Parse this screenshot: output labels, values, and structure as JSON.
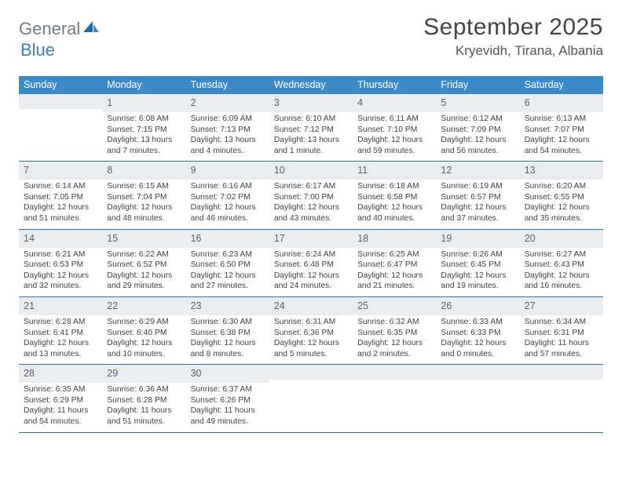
{
  "brand": {
    "part1": "General",
    "part2": "Blue"
  },
  "title": "September 2025",
  "location": "Kryevidh, Tirana, Albania",
  "colors": {
    "header_bg": "#3a8ac8",
    "daynum_bg": "#e9edf0",
    "divider": "#2e6fa6",
    "brand_gray": "#6f7a84",
    "brand_blue": "#3a7fbf"
  },
  "weekdays": [
    "Sunday",
    "Monday",
    "Tuesday",
    "Wednesday",
    "Thursday",
    "Friday",
    "Saturday"
  ],
  "weeks": [
    [
      {
        "n": "",
        "sunrise": "",
        "sunset": "",
        "day1": "",
        "day2": ""
      },
      {
        "n": "1",
        "sunrise": "Sunrise: 6:08 AM",
        "sunset": "Sunset: 7:15 PM",
        "day1": "Daylight: 13 hours",
        "day2": "and 7 minutes."
      },
      {
        "n": "2",
        "sunrise": "Sunrise: 6:09 AM",
        "sunset": "Sunset: 7:13 PM",
        "day1": "Daylight: 13 hours",
        "day2": "and 4 minutes."
      },
      {
        "n": "3",
        "sunrise": "Sunrise: 6:10 AM",
        "sunset": "Sunset: 7:12 PM",
        "day1": "Daylight: 13 hours",
        "day2": "and 1 minute."
      },
      {
        "n": "4",
        "sunrise": "Sunrise: 6:11 AM",
        "sunset": "Sunset: 7:10 PM",
        "day1": "Daylight: 12 hours",
        "day2": "and 59 minutes."
      },
      {
        "n": "5",
        "sunrise": "Sunrise: 6:12 AM",
        "sunset": "Sunset: 7:09 PM",
        "day1": "Daylight: 12 hours",
        "day2": "and 56 minutes."
      },
      {
        "n": "6",
        "sunrise": "Sunrise: 6:13 AM",
        "sunset": "Sunset: 7:07 PM",
        "day1": "Daylight: 12 hours",
        "day2": "and 54 minutes."
      }
    ],
    [
      {
        "n": "7",
        "sunrise": "Sunrise: 6:14 AM",
        "sunset": "Sunset: 7:05 PM",
        "day1": "Daylight: 12 hours",
        "day2": "and 51 minutes."
      },
      {
        "n": "8",
        "sunrise": "Sunrise: 6:15 AM",
        "sunset": "Sunset: 7:04 PM",
        "day1": "Daylight: 12 hours",
        "day2": "and 48 minutes."
      },
      {
        "n": "9",
        "sunrise": "Sunrise: 6:16 AM",
        "sunset": "Sunset: 7:02 PM",
        "day1": "Daylight: 12 hours",
        "day2": "and 46 minutes."
      },
      {
        "n": "10",
        "sunrise": "Sunrise: 6:17 AM",
        "sunset": "Sunset: 7:00 PM",
        "day1": "Daylight: 12 hours",
        "day2": "and 43 minutes."
      },
      {
        "n": "11",
        "sunrise": "Sunrise: 6:18 AM",
        "sunset": "Sunset: 6:58 PM",
        "day1": "Daylight: 12 hours",
        "day2": "and 40 minutes."
      },
      {
        "n": "12",
        "sunrise": "Sunrise: 6:19 AM",
        "sunset": "Sunset: 6:57 PM",
        "day1": "Daylight: 12 hours",
        "day2": "and 37 minutes."
      },
      {
        "n": "13",
        "sunrise": "Sunrise: 6:20 AM",
        "sunset": "Sunset: 6:55 PM",
        "day1": "Daylight: 12 hours",
        "day2": "and 35 minutes."
      }
    ],
    [
      {
        "n": "14",
        "sunrise": "Sunrise: 6:21 AM",
        "sunset": "Sunset: 6:53 PM",
        "day1": "Daylight: 12 hours",
        "day2": "and 32 minutes."
      },
      {
        "n": "15",
        "sunrise": "Sunrise: 6:22 AM",
        "sunset": "Sunset: 6:52 PM",
        "day1": "Daylight: 12 hours",
        "day2": "and 29 minutes."
      },
      {
        "n": "16",
        "sunrise": "Sunrise: 6:23 AM",
        "sunset": "Sunset: 6:50 PM",
        "day1": "Daylight: 12 hours",
        "day2": "and 27 minutes."
      },
      {
        "n": "17",
        "sunrise": "Sunrise: 6:24 AM",
        "sunset": "Sunset: 6:48 PM",
        "day1": "Daylight: 12 hours",
        "day2": "and 24 minutes."
      },
      {
        "n": "18",
        "sunrise": "Sunrise: 6:25 AM",
        "sunset": "Sunset: 6:47 PM",
        "day1": "Daylight: 12 hours",
        "day2": "and 21 minutes."
      },
      {
        "n": "19",
        "sunrise": "Sunrise: 6:26 AM",
        "sunset": "Sunset: 6:45 PM",
        "day1": "Daylight: 12 hours",
        "day2": "and 19 minutes."
      },
      {
        "n": "20",
        "sunrise": "Sunrise: 6:27 AM",
        "sunset": "Sunset: 6:43 PM",
        "day1": "Daylight: 12 hours",
        "day2": "and 16 minutes."
      }
    ],
    [
      {
        "n": "21",
        "sunrise": "Sunrise: 6:28 AM",
        "sunset": "Sunset: 6:41 PM",
        "day1": "Daylight: 12 hours",
        "day2": "and 13 minutes."
      },
      {
        "n": "22",
        "sunrise": "Sunrise: 6:29 AM",
        "sunset": "Sunset: 6:40 PM",
        "day1": "Daylight: 12 hours",
        "day2": "and 10 minutes."
      },
      {
        "n": "23",
        "sunrise": "Sunrise: 6:30 AM",
        "sunset": "Sunset: 6:38 PM",
        "day1": "Daylight: 12 hours",
        "day2": "and 8 minutes."
      },
      {
        "n": "24",
        "sunrise": "Sunrise: 6:31 AM",
        "sunset": "Sunset: 6:36 PM",
        "day1": "Daylight: 12 hours",
        "day2": "and 5 minutes."
      },
      {
        "n": "25",
        "sunrise": "Sunrise: 6:32 AM",
        "sunset": "Sunset: 6:35 PM",
        "day1": "Daylight: 12 hours",
        "day2": "and 2 minutes."
      },
      {
        "n": "26",
        "sunrise": "Sunrise: 6:33 AM",
        "sunset": "Sunset: 6:33 PM",
        "day1": "Daylight: 12 hours",
        "day2": "and 0 minutes."
      },
      {
        "n": "27",
        "sunrise": "Sunrise: 6:34 AM",
        "sunset": "Sunset: 6:31 PM",
        "day1": "Daylight: 11 hours",
        "day2": "and 57 minutes."
      }
    ],
    [
      {
        "n": "28",
        "sunrise": "Sunrise: 6:35 AM",
        "sunset": "Sunset: 6:29 PM",
        "day1": "Daylight: 11 hours",
        "day2": "and 54 minutes."
      },
      {
        "n": "29",
        "sunrise": "Sunrise: 6:36 AM",
        "sunset": "Sunset: 6:28 PM",
        "day1": "Daylight: 11 hours",
        "day2": "and 51 minutes."
      },
      {
        "n": "30",
        "sunrise": "Sunrise: 6:37 AM",
        "sunset": "Sunset: 6:26 PM",
        "day1": "Daylight: 11 hours",
        "day2": "and 49 minutes."
      },
      {
        "n": "",
        "sunrise": "",
        "sunset": "",
        "day1": "",
        "day2": ""
      },
      {
        "n": "",
        "sunrise": "",
        "sunset": "",
        "day1": "",
        "day2": ""
      },
      {
        "n": "",
        "sunrise": "",
        "sunset": "",
        "day1": "",
        "day2": ""
      },
      {
        "n": "",
        "sunrise": "",
        "sunset": "",
        "day1": "",
        "day2": ""
      }
    ]
  ]
}
